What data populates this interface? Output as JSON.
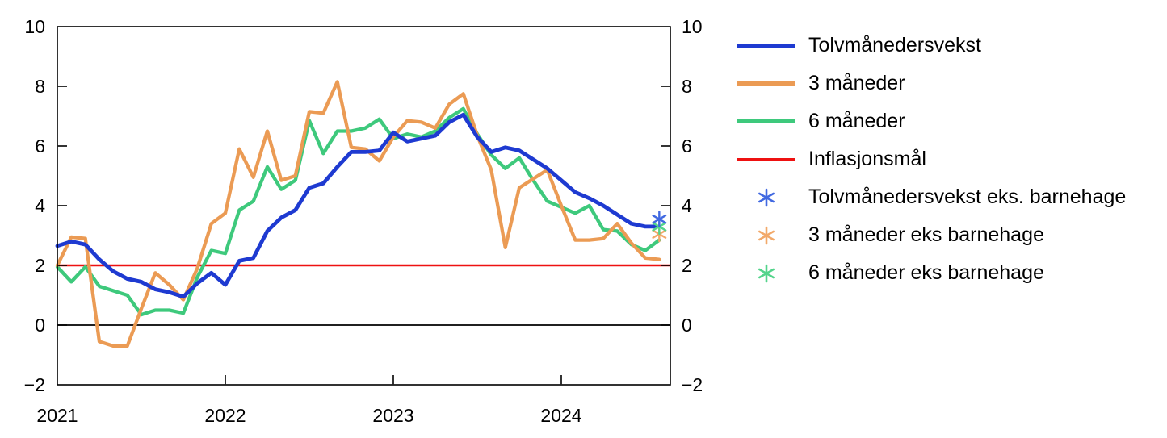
{
  "figure": {
    "background": "#ffffff"
  },
  "legend": {
    "items": [
      {
        "label": "Tolvmånedersvekst",
        "marker": "line",
        "color": "#1e3ad1",
        "thickness": 5.5
      },
      {
        "label": "3 måneder",
        "marker": "line",
        "color": "#eb9b54",
        "thickness": 4.5
      },
      {
        "label": "6 måneder",
        "marker": "line",
        "color": "#3ec97c",
        "thickness": 4.5
      },
      {
        "label": "Inflasjonsmål",
        "marker": "line",
        "color": "#ee1111",
        "thickness": 2.5
      },
      {
        "label": "Tolvmånedersvekst eks. barnehage",
        "marker": "asterisk",
        "color": "#4169e1"
      },
      {
        "label": "3 måneder eks barnehage",
        "marker": "asterisk",
        "color": "#f2a96a"
      },
      {
        "label": "6 måneder eks barnehage",
        "marker": "asterisk",
        "color": "#53d48b"
      }
    ]
  },
  "chart_data": {
    "type": "line",
    "title": "",
    "xlabel": "",
    "ylabel": "",
    "ylim": [
      -2,
      10
    ],
    "grid": false,
    "legend_position": "right",
    "x": [
      "2021-01",
      "2021-02",
      "2021-03",
      "2021-04",
      "2021-05",
      "2021-06",
      "2021-07",
      "2021-08",
      "2021-09",
      "2021-10",
      "2021-11",
      "2021-12",
      "2022-01",
      "2022-02",
      "2022-03",
      "2022-04",
      "2022-05",
      "2022-06",
      "2022-07",
      "2022-08",
      "2022-09",
      "2022-10",
      "2022-11",
      "2022-12",
      "2023-01",
      "2023-02",
      "2023-03",
      "2023-04",
      "2023-05",
      "2023-06",
      "2023-07",
      "2023-08",
      "2023-09",
      "2023-10",
      "2023-11",
      "2023-12",
      "2024-01",
      "2024-02",
      "2024-03",
      "2024-04",
      "2024-05",
      "2024-06",
      "2024-07",
      "2024-08"
    ],
    "y_ticks": [
      {
        "label": "10",
        "value": 10
      },
      {
        "label": "8",
        "value": 8
      },
      {
        "label": "6",
        "value": 6
      },
      {
        "label": "4",
        "value": 4
      },
      {
        "label": "2",
        "value": 2
      },
      {
        "label": "0",
        "value": 0
      },
      {
        "label": "−2",
        "value": -2
      }
    ],
    "x_ticks": [
      {
        "label": "2021",
        "month": 0
      },
      {
        "label": "2022",
        "month": 12
      },
      {
        "label": "2023",
        "month": 24
      },
      {
        "label": "2024",
        "month": 36
      }
    ],
    "reference_lines": [
      {
        "id": "zero-line",
        "label": "",
        "value": 0,
        "color": "#000000",
        "width": 1.8
      },
      {
        "id": "inflasjonsmal",
        "label": "Inflasjonsmål",
        "value": 2,
        "color": "#ee1111",
        "width": 2.5
      }
    ],
    "series": [
      {
        "id": "seks-maneder",
        "name": "6 måneder",
        "color": "#3ec97c",
        "width": 4.3,
        "values": [
          1.95,
          1.45,
          1.95,
          1.3,
          1.15,
          1.0,
          0.35,
          0.5,
          0.5,
          0.4,
          1.6,
          2.5,
          2.4,
          3.85,
          4.15,
          5.3,
          4.55,
          4.85,
          6.85,
          5.75,
          6.5,
          6.5,
          6.6,
          6.9,
          6.25,
          6.4,
          6.3,
          6.5,
          6.95,
          7.25,
          6.4,
          5.7,
          5.25,
          5.6,
          4.85,
          4.15,
          3.95,
          3.75,
          4.0,
          3.2,
          3.15,
          2.7,
          2.5,
          2.85
        ]
      },
      {
        "id": "tre-maneder",
        "name": "3 måneder",
        "color": "#eb9b54",
        "width": 4.3,
        "values": [
          2.0,
          2.95,
          2.9,
          -0.55,
          -0.7,
          -0.7,
          0.55,
          1.75,
          1.35,
          0.85,
          1.9,
          3.4,
          3.75,
          5.9,
          4.95,
          6.5,
          4.85,
          5.0,
          7.15,
          7.1,
          8.15,
          5.95,
          5.9,
          5.5,
          6.3,
          6.85,
          6.8,
          6.6,
          7.4,
          7.75,
          6.35,
          5.2,
          2.6,
          4.6,
          4.9,
          5.2,
          4.0,
          2.85,
          2.85,
          2.9,
          3.4,
          2.75,
          2.25,
          2.2
        ]
      },
      {
        "id": "tolvmanedersvekst",
        "name": "Tolvmånedersvekst",
        "color": "#1e3ad1",
        "width": 4.8,
        "values": [
          2.65,
          2.8,
          2.7,
          2.2,
          1.8,
          1.55,
          1.45,
          1.2,
          1.1,
          0.95,
          1.4,
          1.75,
          1.35,
          2.15,
          2.25,
          3.15,
          3.6,
          3.85,
          4.6,
          4.75,
          5.3,
          5.8,
          5.8,
          5.85,
          6.45,
          6.15,
          6.25,
          6.35,
          6.8,
          7.05,
          6.3,
          5.8,
          5.95,
          5.85,
          5.55,
          5.25,
          4.85,
          4.45,
          4.25,
          4.0,
          3.7,
          3.4,
          3.3,
          3.3
        ]
      }
    ],
    "markers": [
      {
        "id": "tre-maneder-eks-barnehage",
        "name": "3 måneder eks barnehage",
        "x": "2024-08",
        "value": 3.05,
        "color": "#f2a96a"
      },
      {
        "id": "seks-maneder-eks-barnehage",
        "name": "6 måneder eks barnehage",
        "x": "2024-08",
        "value": 3.3,
        "color": "#53d48b"
      },
      {
        "id": "tolvmanedersvekst-eks-barnehage",
        "name": "Tolvmånedersvekst eks. barnehage",
        "x": "2024-08",
        "value": 3.55,
        "color": "#4169e1"
      }
    ]
  }
}
